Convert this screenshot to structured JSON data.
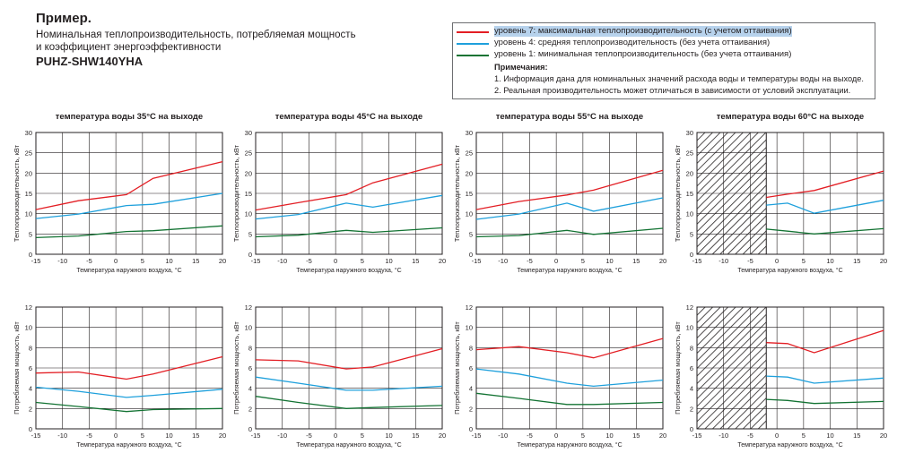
{
  "header": {
    "title": "Пример.",
    "subtitle_line1": "Номинальная теплопроизводительность, потребляемая мощность",
    "subtitle_line2": "и коэффициент энергоэффективности",
    "model": "PUHZ-SHW140YHA"
  },
  "legend": {
    "items": [
      {
        "label": "уровень 7: максимальная теплопроизводительность (с учетом оттаивания)",
        "color": "#e31e24"
      },
      {
        "label": "уровень 4: средняя теплопроизводительность (без учета оттаивания)",
        "color": "#1ea0dc"
      },
      {
        "label": "уровень 1: минимальная теплопроизводительность (без учета оттаивания)",
        "color": "#137333"
      }
    ],
    "notes_title": "Примечания:",
    "note1": "1. Информация дана для номинальных значений расхода воды и температуры воды на выходе.",
    "note2": "2. Реальная производительность может отличаться в зависимости от условий эксплуатации."
  },
  "chart_data": {
    "type": "line",
    "x": [
      -15,
      -7,
      2,
      7,
      20
    ],
    "xticks": [
      -15,
      -10,
      -5,
      0,
      5,
      10,
      15,
      20
    ],
    "xlim": [
      -15,
      20
    ],
    "xlabel": "Температура наружного воздуха, °С",
    "columns": [
      {
        "title": "температура воды 35°С на выходе",
        "hatch_to": null
      },
      {
        "title": "температура воды 45°С на выходе",
        "hatch_to": null
      },
      {
        "title": "температура воды 55°С на выходе",
        "hatch_to": null
      },
      {
        "title": "температура воды 60°С на выходе",
        "hatch_to": -2
      }
    ],
    "rows": [
      {
        "ylabel": "Теплопроизводительность, кВт",
        "ylim": [
          0,
          30
        ],
        "yticks": [
          0,
          5,
          10,
          15,
          20,
          25,
          30
        ],
        "charts": [
          {
            "series": [
              {
                "name": "уровень 7",
                "x": [
                  -15,
                  -7,
                  2,
                  7,
                  20
                ],
                "y": [
                  11,
                  13.2,
                  14.7,
                  18.7,
                  22.8
                ]
              },
              {
                "name": "уровень 4",
                "x": [
                  -15,
                  -7,
                  2,
                  7,
                  20
                ],
                "y": [
                  8.8,
                  9.9,
                  12,
                  12.3,
                  15
                ]
              },
              {
                "name": "уровень 1",
                "x": [
                  -15,
                  -7,
                  2,
                  7,
                  20
                ],
                "y": [
                  4.1,
                  4.5,
                  5.6,
                  5.8,
                  7
                ]
              }
            ]
          },
          {
            "series": [
              {
                "name": "уровень 7",
                "x": [
                  -15,
                  -7,
                  2,
                  7,
                  20
                ],
                "y": [
                  10.9,
                  12.7,
                  14.7,
                  17.6,
                  22.2
                ]
              },
              {
                "name": "уровень 4",
                "x": [
                  -15,
                  -7,
                  2,
                  7,
                  20
                ],
                "y": [
                  8.7,
                  9.8,
                  12.6,
                  11.6,
                  14.5
                ]
              },
              {
                "name": "уровень 1",
                "x": [
                  -15,
                  -7,
                  2,
                  7,
                  20
                ],
                "y": [
                  4.3,
                  4.7,
                  5.9,
                  5.4,
                  6.5
                ]
              }
            ]
          },
          {
            "series": [
              {
                "name": "уровень 7",
                "x": [
                  -15,
                  -7,
                  2,
                  7,
                  20
                ],
                "y": [
                  11,
                  13,
                  14.6,
                  15.8,
                  20.7
                ]
              },
              {
                "name": "уровень 4",
                "x": [
                  -15,
                  -7,
                  2,
                  7,
                  20
                ],
                "y": [
                  8.6,
                  9.9,
                  12.6,
                  10.6,
                  13.9
                ]
              },
              {
                "name": "уровень 1",
                "x": [
                  -15,
                  -7,
                  2,
                  7,
                  20
                ],
                "y": [
                  4.3,
                  4.6,
                  5.9,
                  4.9,
                  6.4
                ]
              }
            ]
          },
          {
            "series": [
              {
                "name": "уровень 7",
                "x": [
                  -2,
                  2,
                  7,
                  20
                ],
                "y": [
                  14,
                  14.8,
                  15.7,
                  20.5
                ]
              },
              {
                "name": "уровень 4",
                "x": [
                  -2,
                  2,
                  7,
                  20
                ],
                "y": [
                  12.1,
                  12.6,
                  10.1,
                  13.3
                ]
              },
              {
                "name": "уровень 1",
                "x": [
                  -2,
                  2,
                  7,
                  20
                ],
                "y": [
                  6.2,
                  5.7,
                  5,
                  6.3
                ]
              }
            ]
          }
        ]
      },
      {
        "ylabel": "Потребляемая мощность, кВт",
        "ylim": [
          0,
          12
        ],
        "yticks": [
          0,
          2,
          4,
          6,
          8,
          10,
          12
        ],
        "charts": [
          {
            "series": [
              {
                "name": "уровень 7",
                "x": [
                  -15,
                  -7,
                  2,
                  7,
                  20
                ],
                "y": [
                  5.5,
                  5.6,
                  4.9,
                  5.4,
                  7.1
                ]
              },
              {
                "name": "уровень 4",
                "x": [
                  -15,
                  -7,
                  2,
                  7,
                  20
                ],
                "y": [
                  4.1,
                  3.7,
                  3.1,
                  3.3,
                  3.9
                ]
              },
              {
                "name": "уровень 1",
                "x": [
                  -15,
                  -7,
                  2,
                  7,
                  20
                ],
                "y": [
                  2.6,
                  2.2,
                  1.7,
                  1.9,
                  2
                ]
              }
            ]
          },
          {
            "series": [
              {
                "name": "уровень 7",
                "x": [
                  -15,
                  -7,
                  2,
                  7,
                  20
                ],
                "y": [
                  6.8,
                  6.7,
                  5.9,
                  6.1,
                  7.9
                ]
              },
              {
                "name": "уровень 4",
                "x": [
                  -15,
                  -7,
                  2,
                  7,
                  20
                ],
                "y": [
                  5.1,
                  4.5,
                  3.8,
                  3.8,
                  4.2
                ]
              },
              {
                "name": "уровень 1",
                "x": [
                  -15,
                  -7,
                  2,
                  7,
                  20
                ],
                "y": [
                  3.2,
                  2.6,
                  2,
                  2.1,
                  2.3
                ]
              }
            ]
          },
          {
            "series": [
              {
                "name": "уровень 7",
                "x": [
                  -15,
                  -7,
                  2,
                  7,
                  20
                ],
                "y": [
                  7.8,
                  8.1,
                  7.5,
                  7,
                  8.9
                ]
              },
              {
                "name": "уровень 4",
                "x": [
                  -15,
                  -7,
                  2,
                  7,
                  20
                ],
                "y": [
                  5.9,
                  5.4,
                  4.5,
                  4.2,
                  4.8
                ]
              },
              {
                "name": "уровень 1",
                "x": [
                  -15,
                  -7,
                  2,
                  7,
                  20
                ],
                "y": [
                  3.5,
                  3,
                  2.4,
                  2.4,
                  2.6
                ]
              }
            ]
          },
          {
            "series": [
              {
                "name": "уровень 7",
                "x": [
                  -2,
                  2,
                  7,
                  20
                ],
                "y": [
                  8.5,
                  8.4,
                  7.5,
                  9.7
                ]
              },
              {
                "name": "уровень 4",
                "x": [
                  -2,
                  2,
                  7,
                  20
                ],
                "y": [
                  5.2,
                  5.1,
                  4.5,
                  5
                ]
              },
              {
                "name": "уровень 1",
                "x": [
                  -2,
                  2,
                  7,
                  20
                ],
                "y": [
                  2.9,
                  2.8,
                  2.5,
                  2.7
                ]
              }
            ]
          }
        ]
      }
    ]
  }
}
